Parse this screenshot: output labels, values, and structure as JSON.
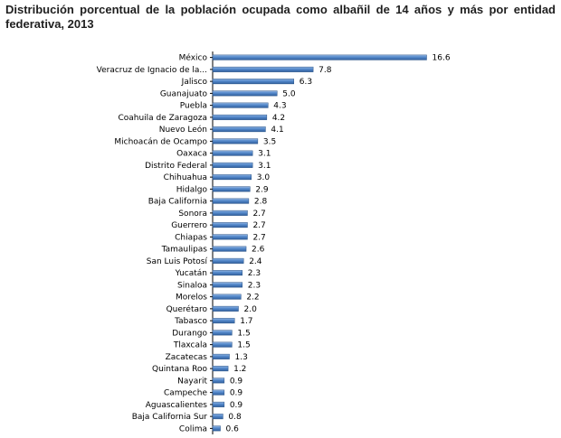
{
  "chart_data": {
    "type": "bar",
    "orientation": "horizontal",
    "title": "Distribución porcentual de la población ocupada como albañil de 14 años y más por entidad federativa, 2013",
    "categories": [
      "México",
      "Veracruz de Ignacio de la...",
      "Jalisco",
      "Guanajuato",
      "Puebla",
      "Coahuila de Zaragoza",
      "Nuevo León",
      "Michoacán de Ocampo",
      "Oaxaca",
      "Distrito Federal",
      "Chihuahua",
      "Hidalgo",
      "Baja California",
      "Sonora",
      "Guerrero",
      "Chiapas",
      "Tamaulipas",
      "San Luis Potosí",
      "Yucatán",
      "Sinaloa",
      "Morelos",
      "Querétaro",
      "Tabasco",
      "Durango",
      "Tlaxcala",
      "Zacatecas",
      "Quintana Roo",
      "Nayarit",
      "Campeche",
      "Aguascalientes",
      "Baja California Sur",
      "Colima"
    ],
    "values": [
      16.6,
      7.8,
      6.3,
      5.0,
      4.3,
      4.2,
      4.1,
      3.5,
      3.1,
      3.1,
      3.0,
      2.9,
      2.8,
      2.7,
      2.7,
      2.7,
      2.6,
      2.4,
      2.3,
      2.3,
      2.2,
      2.0,
      1.7,
      1.5,
      1.5,
      1.3,
      1.2,
      0.9,
      0.9,
      0.9,
      0.8,
      0.6
    ],
    "value_labels": [
      "16.6",
      "7.8",
      "6.3",
      "5.0",
      "4.3",
      "4.2",
      "4.1",
      "3.5",
      "3.1",
      "3.1",
      "3.0",
      "2.9",
      "2.8",
      "2.7",
      "2.7",
      "2.7",
      "2.6",
      "2.4",
      "2.3",
      "2.3",
      "2.2",
      "2.0",
      "1.7",
      "1.5",
      "1.5",
      "1.3",
      "1.2",
      "0.9",
      "0.9",
      "0.9",
      "0.8",
      "0.6"
    ],
    "xlabel": "",
    "ylabel": "",
    "xlim": [
      0,
      17
    ],
    "grid": false,
    "legend": "none",
    "colors": {
      "bar": "#4a7ebb",
      "bar_edge": "#2c5486",
      "axis": "#000000"
    }
  }
}
